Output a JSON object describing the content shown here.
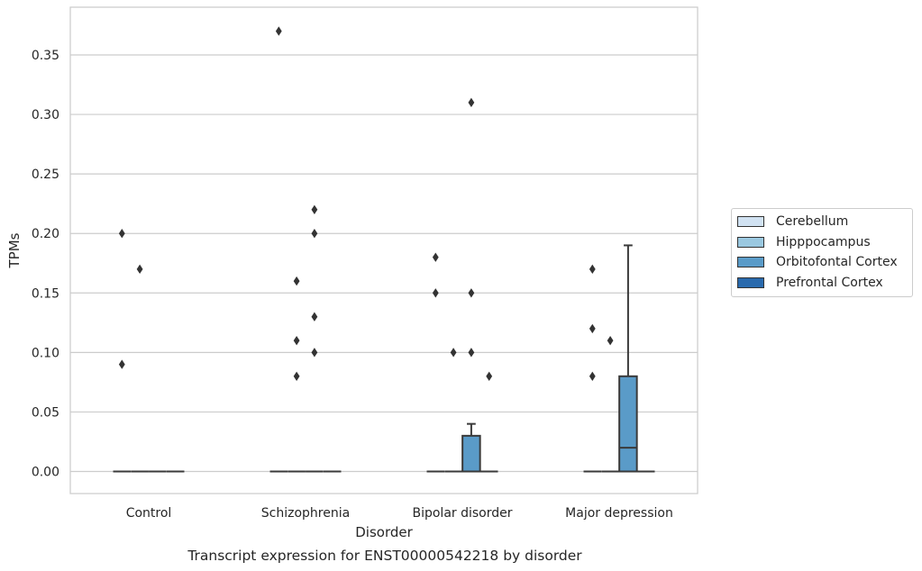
{
  "chart_data": {
    "type": "box",
    "title": "Transcript expression for ENST00000542218 by disorder",
    "xlabel": "Disorder",
    "ylabel": "TPMs",
    "ylim": [
      -0.018,
      0.388
    ],
    "yticks": [
      0.0,
      0.05,
      0.1,
      0.15,
      0.2,
      0.25,
      0.3,
      0.35
    ],
    "ytick_labels": [
      "0.00",
      "0.05",
      "0.10",
      "0.15",
      "0.20",
      "0.25",
      "0.30",
      "0.35"
    ],
    "categories": [
      "Control",
      "Schizophrenia",
      "Bipolar disorder",
      "Major depression"
    ],
    "grid": true,
    "legend_position": "right",
    "series": [
      {
        "name": "Cerebellum",
        "color": "#d1e2f2",
        "boxes": [
          {
            "min": 0,
            "q1": 0,
            "median": 0,
            "q3": 0,
            "max": 0,
            "outliers": [
              0.09,
              0.2
            ]
          },
          {
            "min": 0,
            "q1": 0,
            "median": 0,
            "q3": 0,
            "max": 0,
            "outliers": [
              0.37
            ]
          },
          {
            "min": 0,
            "q1": 0,
            "median": 0,
            "q3": 0,
            "max": 0,
            "outliers": [
              0.15,
              0.18
            ]
          },
          {
            "min": 0,
            "q1": 0,
            "median": 0,
            "q3": 0,
            "max": 0,
            "outliers": [
              0.08,
              0.12,
              0.17
            ]
          }
        ]
      },
      {
        "name": "Hipppocampus",
        "color": "#9ac8e0",
        "boxes": [
          {
            "min": 0,
            "q1": 0,
            "median": 0,
            "q3": 0,
            "max": 0,
            "outliers": [
              0.17
            ]
          },
          {
            "min": 0,
            "q1": 0,
            "median": 0,
            "q3": 0,
            "max": 0,
            "outliers": [
              0.08,
              0.11,
              0.16
            ]
          },
          {
            "min": 0,
            "q1": 0,
            "median": 0,
            "q3": 0,
            "max": 0,
            "outliers": [
              0.1
            ]
          },
          {
            "min": 0,
            "q1": 0,
            "median": 0,
            "q3": 0,
            "max": 0,
            "outliers": [
              0.11
            ]
          }
        ]
      },
      {
        "name": "Orbitofontal Cortex",
        "color": "#5a9bc8",
        "boxes": [
          {
            "min": 0,
            "q1": 0,
            "median": 0,
            "q3": 0,
            "max": 0,
            "outliers": []
          },
          {
            "min": 0,
            "q1": 0,
            "median": 0,
            "q3": 0,
            "max": 0,
            "outliers": [
              0.1,
              0.13,
              0.2,
              0.22
            ]
          },
          {
            "min": 0,
            "q1": 0,
            "median": 0,
            "q3": 0.03,
            "max": 0.04,
            "outliers": [
              0.1,
              0.15,
              0.31
            ]
          },
          {
            "min": 0,
            "q1": 0,
            "median": 0.02,
            "q3": 0.08,
            "max": 0.19,
            "outliers": []
          }
        ]
      },
      {
        "name": "Prefrontal Cortex",
        "color": "#2a6aad",
        "boxes": [
          {
            "min": 0,
            "q1": 0,
            "median": 0,
            "q3": 0,
            "max": 0,
            "outliers": []
          },
          {
            "min": 0,
            "q1": 0,
            "median": 0,
            "q3": 0,
            "max": 0,
            "outliers": []
          },
          {
            "min": 0,
            "q1": 0,
            "median": 0,
            "q3": 0,
            "max": 0,
            "outliers": [
              0.08
            ]
          },
          {
            "min": 0,
            "q1": 0,
            "median": 0,
            "q3": 0,
            "max": 0,
            "outliers": []
          }
        ]
      }
    ]
  }
}
